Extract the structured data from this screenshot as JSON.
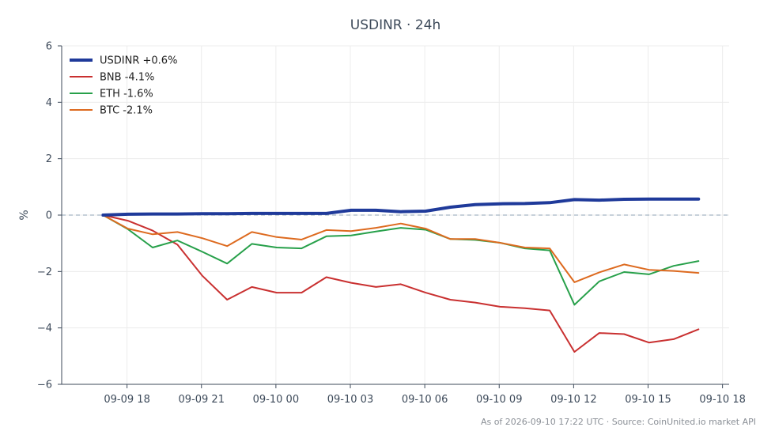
{
  "chart_data": {
    "type": "line",
    "title": "USDINR · 24h",
    "xlabel": "",
    "ylabel": "%",
    "ylim": [
      -6,
      6
    ],
    "y_ticks": [
      -6,
      -4,
      -2,
      0,
      2,
      4,
      6
    ],
    "y_tick_labels": [
      "−6",
      "−4",
      "−2",
      "0",
      "2",
      "4",
      "6"
    ],
    "x_tick_labels": [
      "09-09 18",
      "09-09 21",
      "09-10 00",
      "09-10 03",
      "09-10 06",
      "09-10 09",
      "09-10 12",
      "09-10 15",
      "09-10 18"
    ],
    "x_tick_times": [
      "2026-09-09 18:00",
      "2026-09-09 21:00",
      "2026-09-10 00:00",
      "2026-09-10 03:00",
      "2026-09-10 06:00",
      "2026-09-10 09:00",
      "2026-09-10 12:00",
      "2026-09-10 15:00",
      "2026-09-10 18:00"
    ],
    "xlim": [
      "2026-09-09 15:22",
      "2026-09-10 18:16"
    ],
    "x": [
      "2026-09-09 17:02",
      "2026-09-09 18:02",
      "2026-09-09 19:02",
      "2026-09-09 20:02",
      "2026-09-09 21:02",
      "2026-09-09 22:02",
      "2026-09-09 23:02",
      "2026-09-10 00:02",
      "2026-09-10 01:02",
      "2026-09-10 02:02",
      "2026-09-10 03:02",
      "2026-09-10 04:02",
      "2026-09-10 05:02",
      "2026-09-10 06:02",
      "2026-09-10 07:02",
      "2026-09-10 08:02",
      "2026-09-10 09:02",
      "2026-09-10 10:02",
      "2026-09-10 11:02",
      "2026-09-10 12:02",
      "2026-09-10 13:02",
      "2026-09-10 14:02",
      "2026-09-10 15:02",
      "2026-09-10 16:02",
      "2026-09-10 17:02"
    ],
    "zero_line": true,
    "grid": true,
    "legend_position": "top-left",
    "series": [
      {
        "name": "USDINR +0.6%",
        "color": "#1f3a9a",
        "emphasis": true,
        "values": [
          0,
          0.03,
          0.04,
          0.04,
          0.05,
          0.05,
          0.06,
          0.06,
          0.06,
          0.06,
          0.17,
          0.17,
          0.12,
          0.14,
          0.28,
          0.37,
          0.4,
          0.41,
          0.44,
          0.55,
          0.53,
          0.56,
          0.57,
          0.57,
          0.57
        ]
      },
      {
        "name": "BNB -4.1%",
        "color": "#c93030",
        "values": [
          0,
          -0.2,
          -0.55,
          -1.05,
          -2.15,
          -3.0,
          -2.55,
          -2.75,
          -2.75,
          -2.2,
          -2.4,
          -2.55,
          -2.45,
          -2.75,
          -3.0,
          -3.1,
          -3.25,
          -3.3,
          -3.38,
          -4.85,
          -4.18,
          -4.22,
          -4.52,
          -4.4,
          -4.05
        ]
      },
      {
        "name": "ETH -1.6%",
        "color": "#27a04a",
        "values": [
          0,
          -0.5,
          -1.15,
          -0.9,
          -1.3,
          -1.72,
          -1.02,
          -1.15,
          -1.18,
          -0.75,
          -0.72,
          -0.58,
          -0.45,
          -0.52,
          -0.85,
          -0.88,
          -0.98,
          -1.18,
          -1.25,
          -3.18,
          -2.35,
          -2.02,
          -2.1,
          -1.8,
          -1.63
        ]
      },
      {
        "name": "BTC -2.1%",
        "color": "#dd6a1f",
        "values": [
          0,
          -0.48,
          -0.68,
          -0.6,
          -0.82,
          -1.1,
          -0.6,
          -0.78,
          -0.87,
          -0.53,
          -0.57,
          -0.45,
          -0.3,
          -0.48,
          -0.85,
          -0.85,
          -0.98,
          -1.15,
          -1.18,
          -2.38,
          -2.03,
          -1.75,
          -1.94,
          -1.98,
          -2.05
        ]
      }
    ]
  },
  "footer": "As of 2026-09-10 17:22 UTC · Source: CoinUnited.io market API"
}
